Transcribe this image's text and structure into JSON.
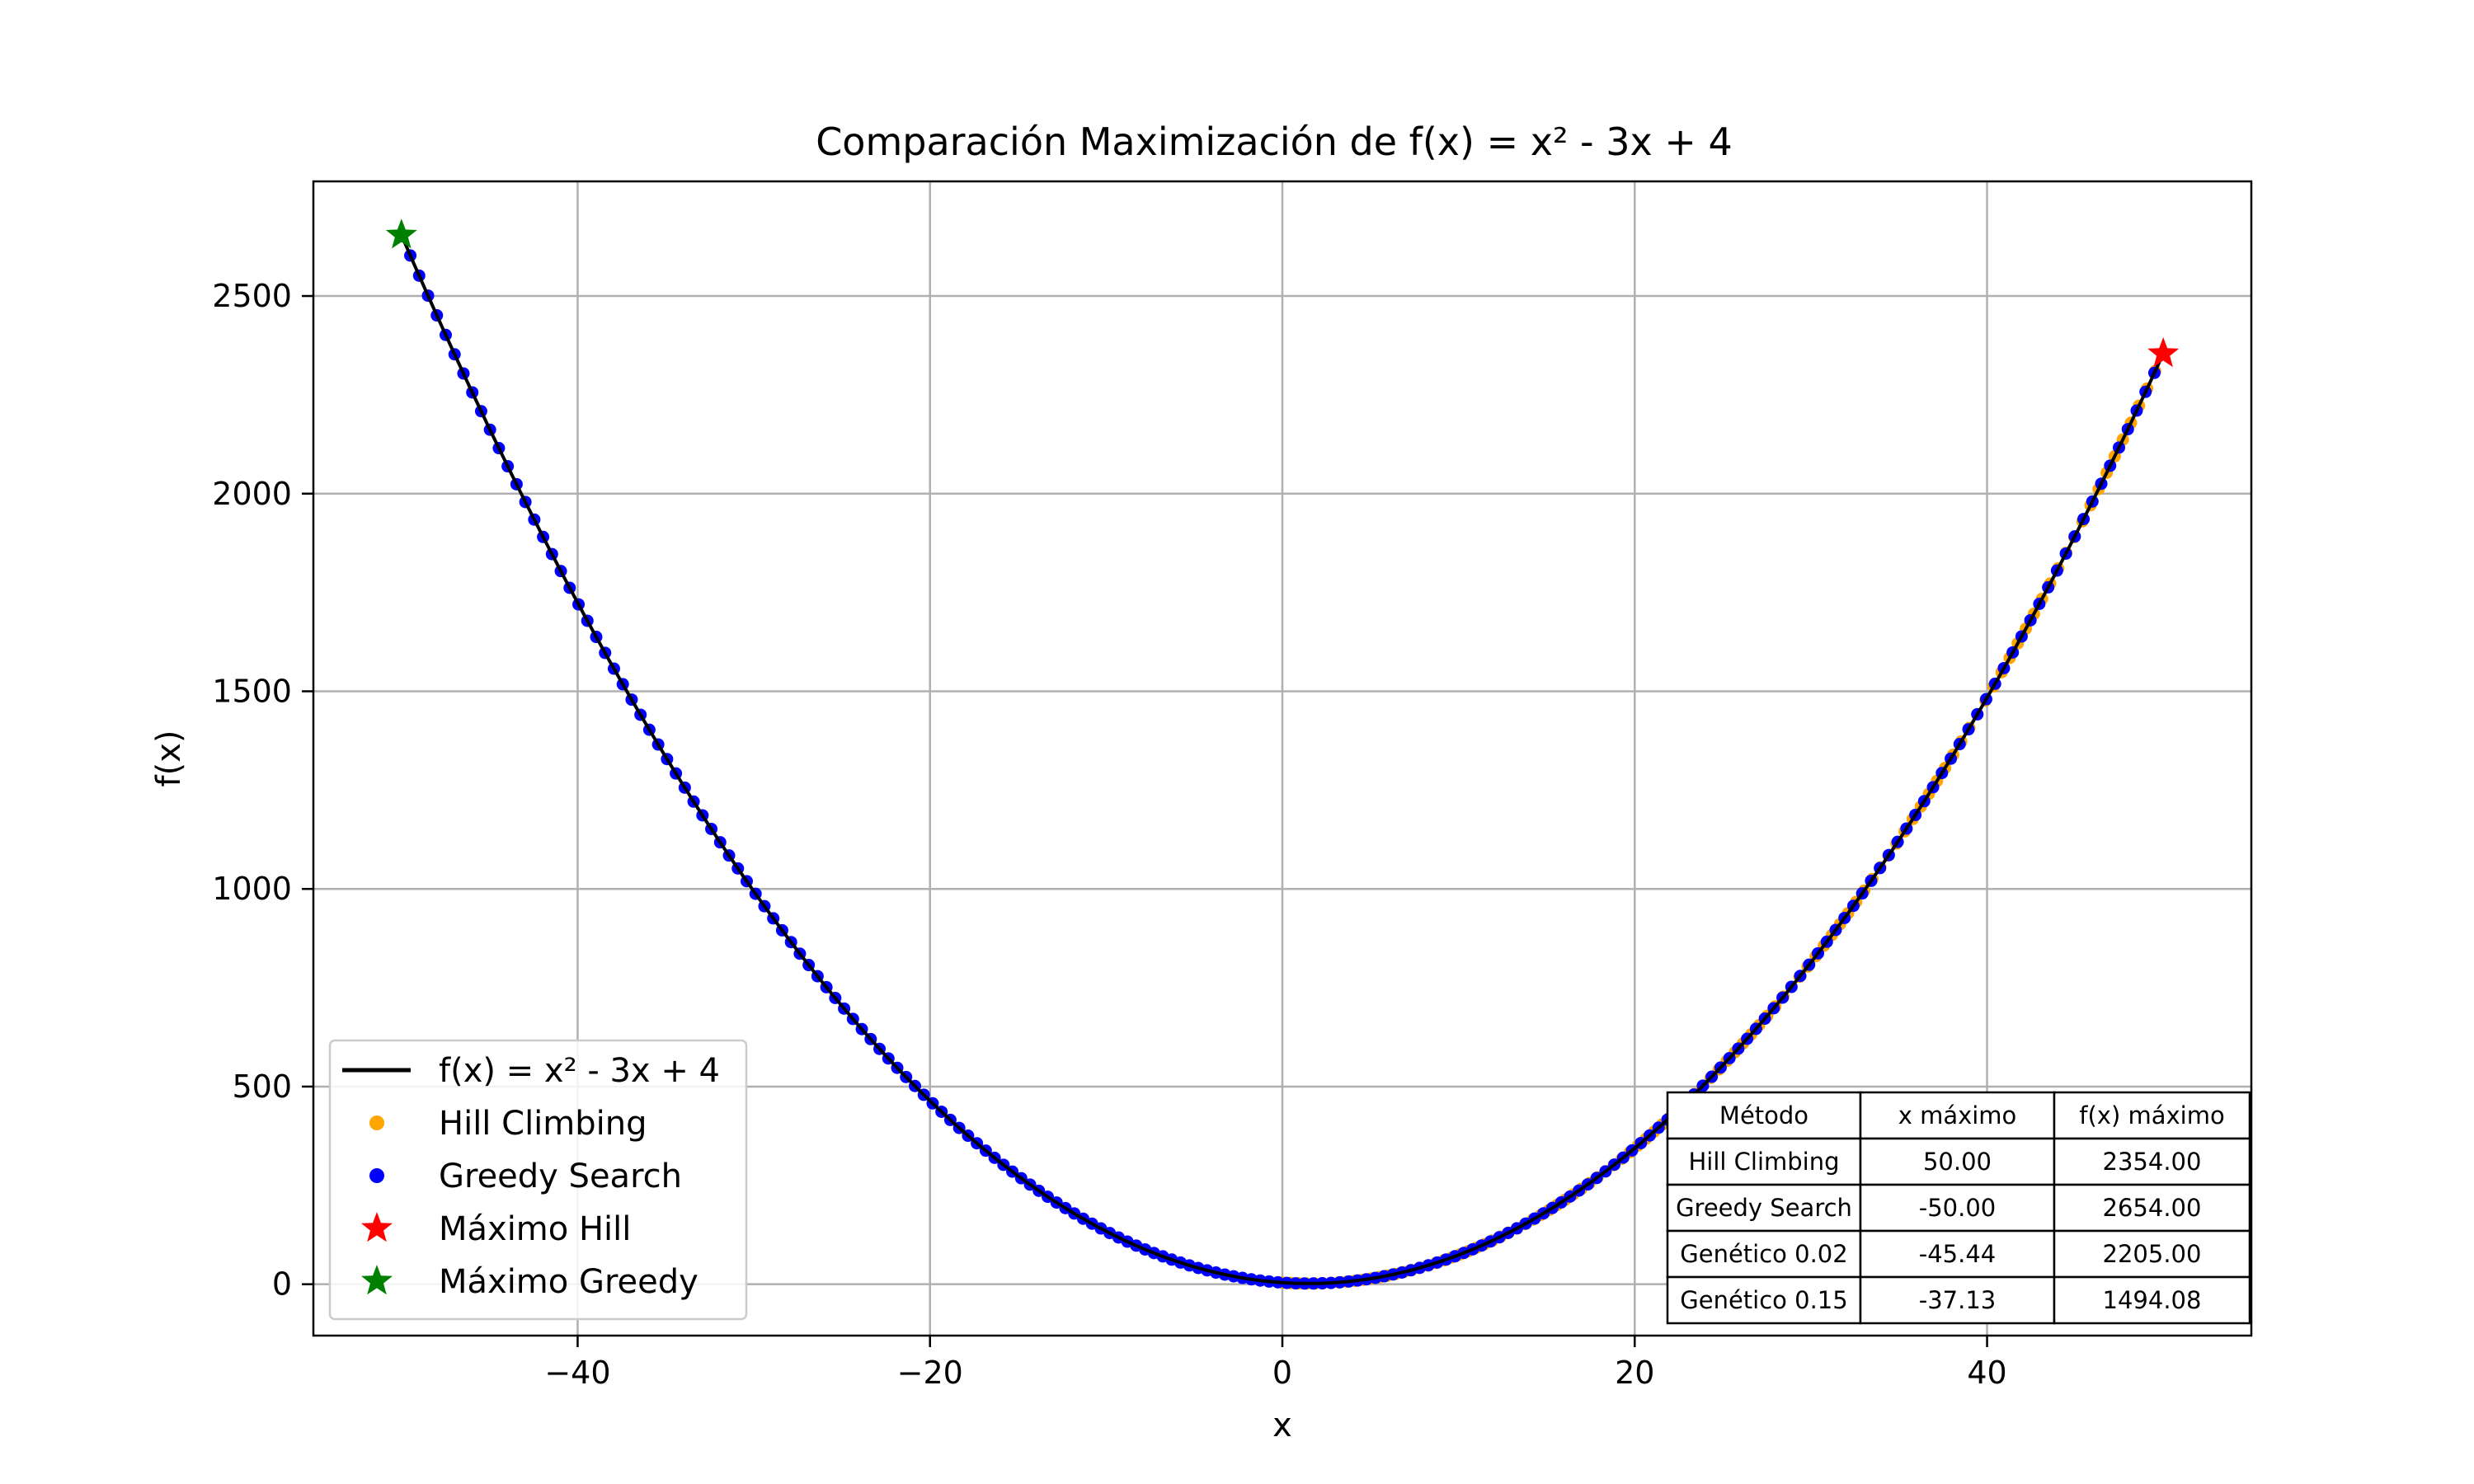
{
  "chart_data": {
    "type": "line",
    "title": "Comparación Maximización de f(x) = x² - 3x + 4",
    "xlabel": "x",
    "ylabel": "f(x)",
    "xlim": [
      -55,
      55
    ],
    "ylim": [
      -130,
      2790
    ],
    "grid": true,
    "xticks": [
      -40,
      -20,
      0,
      20,
      40
    ],
    "xtick_labels": [
      "−40",
      "−20",
      "0",
      "20",
      "40"
    ],
    "yticks": [
      0,
      500,
      1000,
      1500,
      2000,
      2500
    ],
    "ytick_labels": [
      "0",
      "500",
      "1000",
      "1500",
      "2000",
      "2500"
    ],
    "function": {
      "a": 1,
      "b": -3,
      "c": 4,
      "x_range": [
        -50,
        50
      ]
    },
    "series": [
      {
        "name": "f(x) = x² - 3x + 4",
        "kind": "line",
        "color": "#000000",
        "x_range": [
          -50,
          50
        ]
      },
      {
        "name": "Hill Climbing",
        "kind": "scatter",
        "color": "#ffa500",
        "x_range": [
          0,
          50
        ],
        "count": 110
      },
      {
        "name": "Greedy Search",
        "kind": "scatter",
        "color": "#0000ff",
        "x_range": [
          -50,
          50
        ],
        "count": 200
      },
      {
        "name": "Máximo Hill",
        "kind": "star",
        "color": "#ff0000",
        "x": 50,
        "y": 2354
      },
      {
        "name": "Máximo Greedy",
        "kind": "star",
        "color": "#008000",
        "x": -50,
        "y": 2654
      }
    ],
    "legend_position": "lower-left",
    "table": {
      "position": "lower-right",
      "headers": [
        "Método",
        "x máximo",
        "f(x) máximo"
      ],
      "rows": [
        [
          "Hill Climbing",
          "50.00",
          "2354.00"
        ],
        [
          "Greedy Search",
          "-50.00",
          "2654.00"
        ],
        [
          "Genético 0.02",
          "-45.44",
          "2205.00"
        ],
        [
          "Genético 0.15",
          "-37.13",
          "1494.08"
        ]
      ]
    }
  }
}
